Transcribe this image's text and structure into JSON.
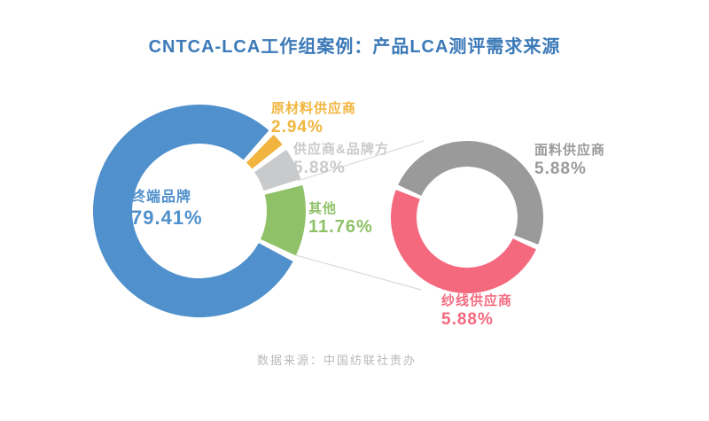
{
  "page": {
    "title": "CNTCA-LCA工作组案例：产品LCA测评需求来源",
    "footer": "数据来源：中国纺联社责办"
  },
  "chart_data": [
    {
      "type": "pie",
      "variant": "donut",
      "title": "产品LCA测评需求来源",
      "categories": [
        "原材料供应商",
        "供应商&品牌方",
        "其他",
        "终端品牌"
      ],
      "values": [
        2.94,
        5.88,
        11.76,
        79.41
      ],
      "labels": [
        "2.94%",
        "5.88%",
        "11.76%",
        "79.41%"
      ],
      "colors": [
        "#F1B53F",
        "#C9CACC",
        "#8FC268",
        "#5090CC"
      ],
      "legend": "none",
      "label_style": "category name + percent, colored same as slice"
    },
    {
      "type": "pie",
      "variant": "donut",
      "title": "其他 11.76% 细分",
      "expanded_from": "其他",
      "categories": [
        "面料供应商",
        "纱线供应商"
      ],
      "values": [
        5.88,
        5.88
      ],
      "labels": [
        "5.88%",
        "5.88%"
      ],
      "colors": [
        "#9A9A9B",
        "#F5697E"
      ],
      "legend": "none"
    }
  ]
}
